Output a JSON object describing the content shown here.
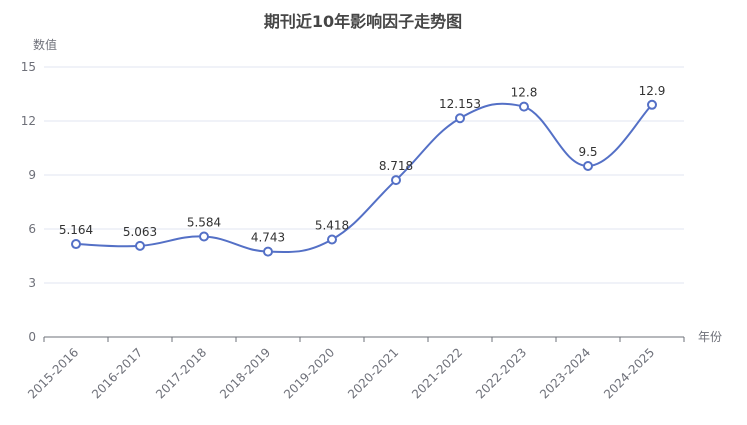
{
  "chart_data": {
    "type": "line",
    "title": "期刊近10年影响因子走势图",
    "xlabel": "年份",
    "ylabel": "数值",
    "categories": [
      "2015-2016",
      "2016-2017",
      "2017-2018",
      "2018-2019",
      "2019-2020",
      "2020-2021",
      "2021-2022",
      "2022-2023",
      "2023-2024",
      "2024-2025"
    ],
    "values": [
      5.164,
      5.063,
      5.584,
      4.743,
      5.418,
      8.718,
      12.153,
      12.8,
      9.5,
      12.9
    ],
    "data_labels": [
      "5.164",
      "5.063",
      "5.584",
      "4.743",
      "5.418",
      "8.718",
      "12.153",
      "12.8",
      "9.5",
      "12.9"
    ],
    "ylim": [
      0,
      15
    ],
    "yticks": [
      0,
      3,
      6,
      9,
      12,
      15
    ],
    "grid": true,
    "smooth": true,
    "line_color": "#5470C6"
  }
}
